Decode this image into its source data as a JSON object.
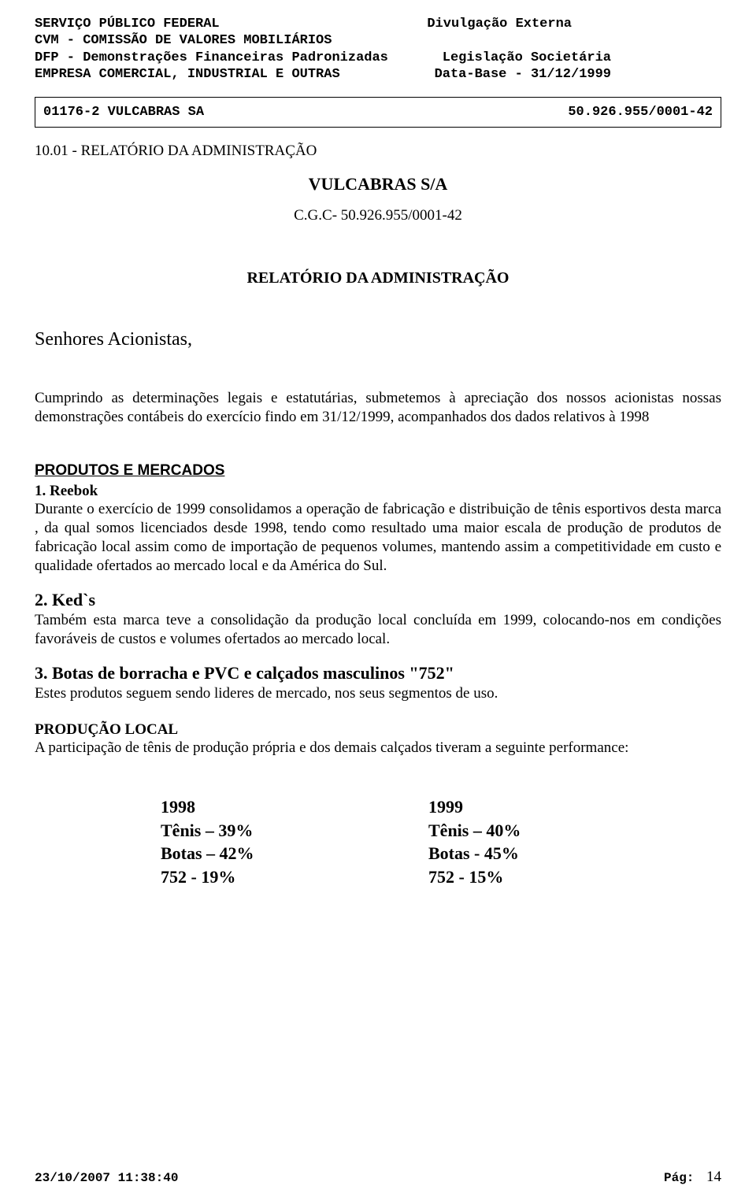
{
  "header": {
    "line1_left": "SERVIÇO PÚBLICO FEDERAL",
    "line1_right": "Divulgação Externa",
    "line2": "CVM - COMISSÃO DE VALORES MOBILIÁRIOS",
    "line3_left": "DFP - Demonstrações Financeiras Padronizadas",
    "line3_right": "Legislação Societária",
    "line4_left": "EMPRESA COMERCIAL, INDUSTRIAL E OUTRAS",
    "line4_right": "Data-Base - 31/12/1999"
  },
  "box": {
    "left": "01176-2 VULCABRAS SA",
    "right": "50.926.955/0001-42"
  },
  "section_number": "10.01 - RELATÓRIO DA ADMINISTRAÇÃO",
  "title": "VULCABRAS S/A",
  "cgc": "C.G.C- 50.926.955/0001-42",
  "rel_title": "RELATÓRIO DA ADMINISTRAÇÃO",
  "senhores": "Senhores Acionistas,",
  "intro": "Cumprindo as determinações legais e estatutárias, submetemos à apreciação dos nossos acionistas nossas demonstrações contábeis do exercício findo em 31/12/1999, acompanhados dos dados relativos à 1998",
  "produtos_head": "PRODUTOS E MERCADOS",
  "item1_head": "1.    Reebok",
  "item1_body": "Durante o  exercício de 1999 consolidamos a operação de fabricação e distribuição de tênis esportivos desta marca , da qual somos licenciados desde 1998, tendo como resultado uma maior escala de produção de produtos de fabricação local assim como de importação de pequenos volumes, mantendo assim a competitividade em custo e qualidade ofertados ao mercado local e da América do Sul.",
  "item2_head": "2.   Ked`s",
  "item2_body": "Também esta marca teve a consolidação da produção local concluída em 1999, colocando-nos em condições favoráveis de custos e volumes ofertados ao mercado local.",
  "item3_head": "3.   Botas de borracha e PVC e calçados masculinos \"752\"",
  "item3_body": "Estes produtos seguem sendo lideres de mercado, nos seus segmentos de uso.",
  "prod_local_head": "PRODUÇÃO LOCAL",
  "prod_local_body": "A participação de tênis de produção própria e dos demais calçados tiveram a seguinte performance:",
  "table": {
    "col1": {
      "year": "1998",
      "r1": "Tênis – 39%",
      "r2": "Botas – 42%",
      "r3": "752     - 19%"
    },
    "col2": {
      "year": "1999",
      "r1": "Tênis – 40%",
      "r2": "Botas  - 45%",
      "r3": "752     - 15%"
    }
  },
  "footer": {
    "timestamp": "23/10/2007 11:38:40",
    "pag_label": "Pág:",
    "pag_num": "14"
  }
}
